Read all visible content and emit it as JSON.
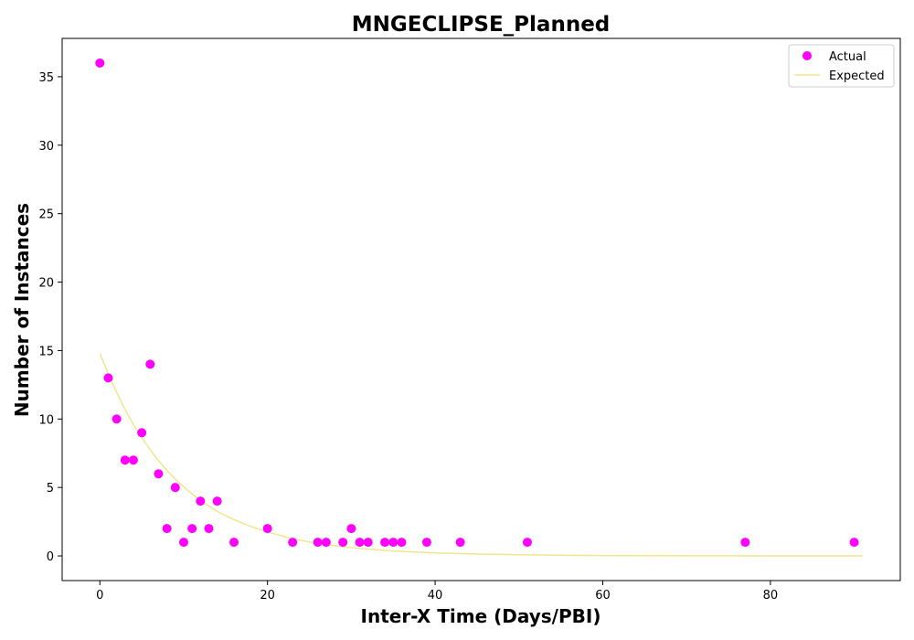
{
  "chart_data": {
    "type": "scatter",
    "title": "MNGECLIPSE_Planned",
    "xlabel": "Inter-X Time (Days/PBI)",
    "ylabel": "Number of Instances",
    "xlim": [
      -4.5,
      95.5
    ],
    "ylim": [
      -1.8,
      37.8
    ],
    "xticks": [
      0,
      20,
      40,
      60,
      80
    ],
    "yticks": [
      0,
      5,
      10,
      15,
      20,
      25,
      30,
      35
    ],
    "grid": false,
    "legend_position": "top-right",
    "series": [
      {
        "name": "Actual",
        "kind": "scatter",
        "color": "#ff00ff",
        "x": [
          0,
          1,
          2,
          3,
          4,
          5,
          6,
          7,
          8,
          9,
          10,
          11,
          12,
          13,
          14,
          16,
          20,
          23,
          26,
          27,
          29,
          30,
          31,
          32,
          34,
          35,
          36,
          39,
          43,
          51,
          77,
          90
        ],
        "y": [
          36,
          13,
          10,
          7,
          7,
          9,
          14,
          6,
          2,
          5,
          1,
          2,
          4,
          2,
          4,
          1,
          2,
          1,
          1,
          1,
          1,
          2,
          1,
          1,
          1,
          1,
          1,
          1,
          1,
          1,
          1,
          1
        ]
      },
      {
        "name": "Expected",
        "kind": "line",
        "color": "#f0e68c",
        "x": [
          0,
          1,
          2,
          3,
          4,
          5,
          6,
          7,
          8,
          9,
          10,
          12,
          14,
          16,
          18,
          20,
          23,
          26,
          30,
          35,
          40,
          45,
          50,
          55,
          60,
          65,
          70,
          75,
          80,
          85,
          90,
          91
        ],
        "y": [
          14.8,
          13.3,
          11.95,
          10.7,
          9.6,
          8.65,
          7.75,
          6.95,
          6.25,
          5.6,
          5.05,
          4.05,
          3.25,
          2.65,
          2.15,
          1.75,
          1.25,
          0.9,
          0.6,
          0.35,
          0.22,
          0.14,
          0.09,
          0.05,
          0.03,
          0.02,
          0.01,
          0.01,
          0.0,
          0.0,
          0.0,
          0.0
        ]
      }
    ]
  }
}
